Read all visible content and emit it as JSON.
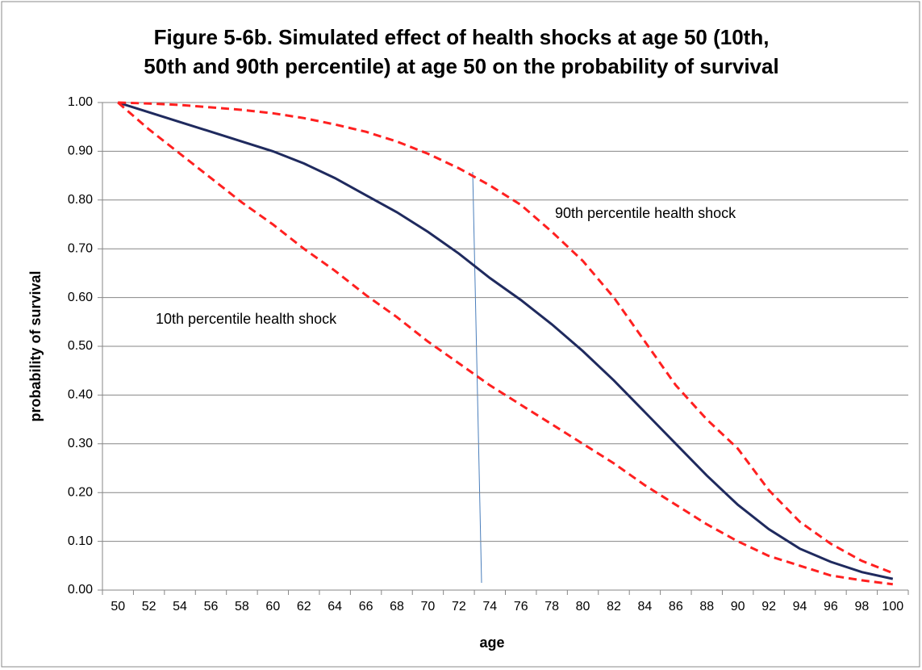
{
  "chart_data": {
    "type": "line",
    "title": [
      "Figure 5-6b.  Simulated effect of health shocks at age 50 (10th,",
      "50th and 90th percentile) at age 50 on the probability of survival"
    ],
    "x_label": "age",
    "y_label": "probability of survival",
    "categories": [
      "50",
      "52",
      "54",
      "56",
      "58",
      "60",
      "62",
      "64",
      "66",
      "68",
      "70",
      "72",
      "74",
      "76",
      "78",
      "80",
      "82",
      "84",
      "86",
      "88",
      "90",
      "92",
      "94",
      "96",
      "98",
      "100"
    ],
    "series": [
      {
        "color": "#1f2a5e",
        "dashed": false,
        "values": [
          1.0,
          0.98,
          0.96,
          0.94,
          0.92,
          0.9,
          0.875,
          0.845,
          0.81,
          0.775,
          0.735,
          0.69,
          0.64,
          0.595,
          0.545,
          0.49,
          0.43,
          0.365,
          0.3,
          0.235,
          0.175,
          0.125,
          0.085,
          0.058,
          0.037,
          0.023
        ]
      },
      {
        "color": "#ff2020",
        "dashed": true,
        "values": [
          1.0,
          0.998,
          0.995,
          0.99,
          0.985,
          0.978,
          0.968,
          0.955,
          0.94,
          0.92,
          0.895,
          0.865,
          0.83,
          0.79,
          0.735,
          0.675,
          0.6,
          0.51,
          0.42,
          0.35,
          0.29,
          0.205,
          0.14,
          0.095,
          0.06,
          0.035
        ]
      },
      {
        "color": "#ff2020",
        "dashed": true,
        "values": [
          1.0,
          0.945,
          0.895,
          0.845,
          0.795,
          0.75,
          0.7,
          0.655,
          0.605,
          0.56,
          0.51,
          0.465,
          0.42,
          0.38,
          0.34,
          0.3,
          0.26,
          0.215,
          0.175,
          0.135,
          0.1,
          0.07,
          0.05,
          0.03,
          0.02,
          0.012
        ]
      }
    ],
    "annotations": [
      "90th percentile health shock",
      "10th percentile health shock"
    ],
    "ylim": [
      0,
      1
    ],
    "yticks": [
      {
        "value": 0,
        "label": "0.00"
      },
      {
        "value": 0.1,
        "label": "0.10"
      },
      {
        "value": 0.2,
        "label": "0.20"
      },
      {
        "value": 0.3,
        "label": "0.30"
      },
      {
        "value": 0.4,
        "label": "0.40"
      },
      {
        "value": 0.5,
        "label": "0.50"
      },
      {
        "value": 0.6,
        "label": "0.60"
      },
      {
        "value": 0.7,
        "label": "0.70"
      },
      {
        "value": 0.8,
        "label": "0.80"
      },
      {
        "value": 0.9,
        "label": "0.90"
      },
      {
        "value": 1,
        "label": "1.00"
      }
    ],
    "grid": true
  }
}
